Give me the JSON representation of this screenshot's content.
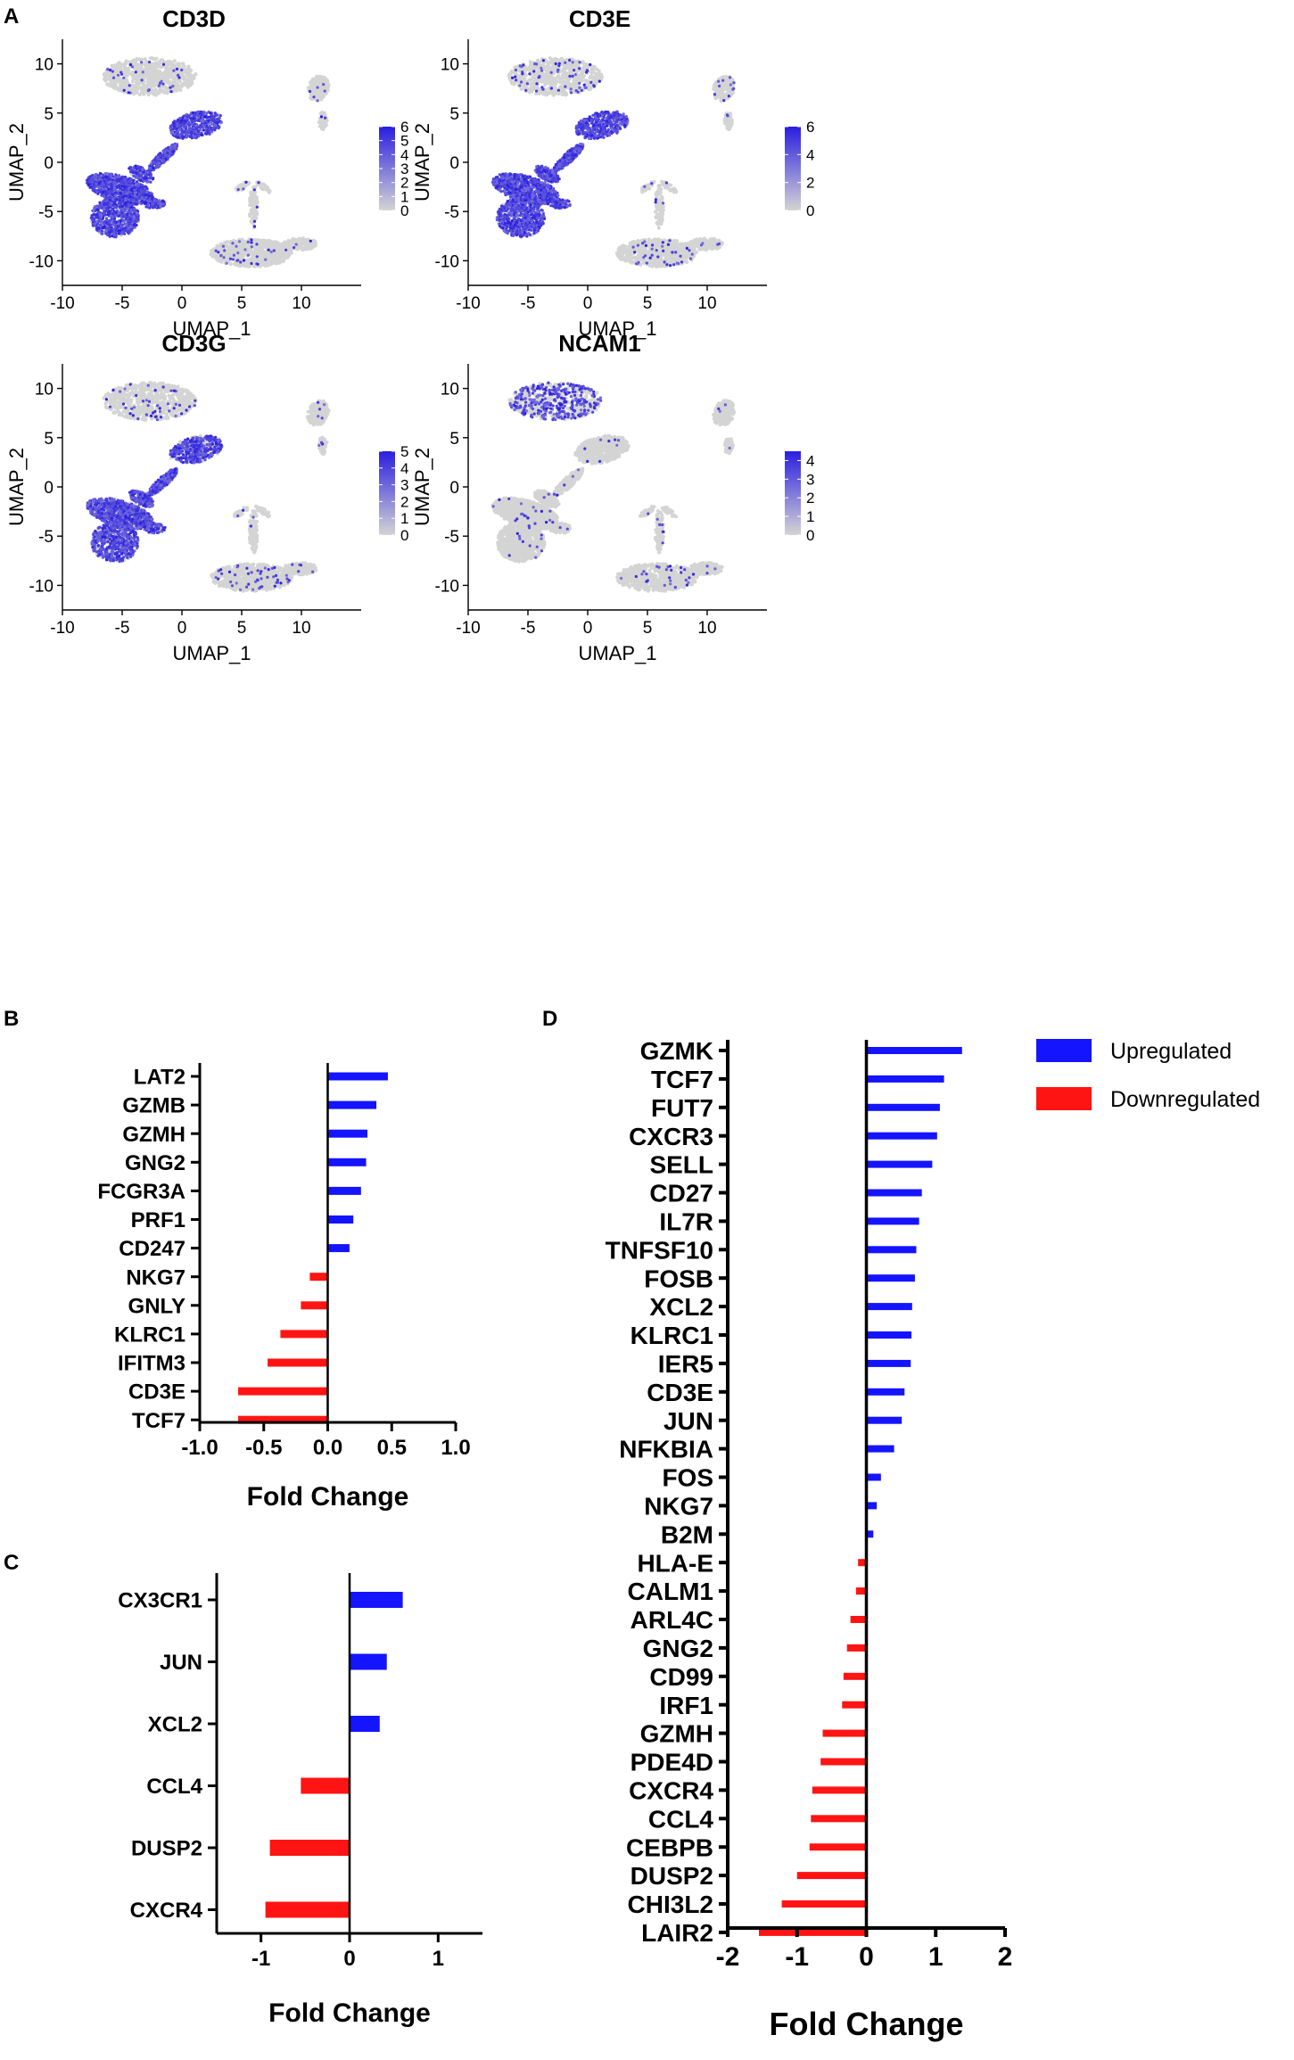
{
  "colors": {
    "high": "#2a1ee0",
    "low": "#d4d4d4",
    "up": "#1414ff",
    "down": "#ff1414"
  },
  "panel_labels": [
    "A",
    "B",
    "C",
    "D"
  ],
  "legend": {
    "up_label": "Upregulated",
    "down_label": "Downregulated"
  },
  "chart_data": [
    {
      "panel": "A",
      "type": "scatter",
      "title": "CD3D",
      "xlabel": "UMAP_1",
      "ylabel": "UMAP_2",
      "xlim": [
        -10,
        15
      ],
      "ylim": [
        -12.5,
        12.5
      ],
      "xticks": [
        -10,
        -5,
        0,
        5,
        10
      ],
      "yticks": [
        -10,
        -5,
        0,
        5,
        10
      ],
      "colorbar": {
        "min": 0,
        "max": 6,
        "ticks": [
          0,
          1,
          2,
          3,
          4,
          5,
          6
        ]
      },
      "expression": {
        "tcell": 0.9,
        "nk": 0.06,
        "myeloid": 0.06,
        "right": 0.05
      }
    },
    {
      "panel": "A",
      "type": "scatter",
      "title": "CD3E",
      "xlabel": "UMAP_1",
      "ylabel": "UMAP_2",
      "xlim": [
        -10,
        15
      ],
      "ylim": [
        -12.5,
        12.5
      ],
      "xticks": [
        -10,
        -5,
        0,
        5,
        10
      ],
      "yticks": [
        -10,
        -5,
        0,
        5,
        10
      ],
      "colorbar": {
        "min": 0,
        "max": 6,
        "ticks": [
          0,
          2,
          4,
          6
        ]
      },
      "expression": {
        "tcell": 0.92,
        "nk": 0.1,
        "myeloid": 0.06,
        "right": 0.08
      }
    },
    {
      "panel": "A",
      "type": "scatter",
      "title": "CD3G",
      "xlabel": "UMAP_1",
      "ylabel": "UMAP_2",
      "xlim": [
        -10,
        15
      ],
      "ylim": [
        -12.5,
        12.5
      ],
      "xticks": [
        -10,
        -5,
        0,
        5,
        10
      ],
      "yticks": [
        -10,
        -5,
        0,
        5,
        10
      ],
      "colorbar": {
        "min": 0,
        "max": 5,
        "ticks": [
          0,
          1,
          2,
          3,
          4,
          5
        ]
      },
      "expression": {
        "tcell": 0.78,
        "nk": 0.08,
        "myeloid": 0.06,
        "right": 0.05
      }
    },
    {
      "panel": "A",
      "type": "scatter",
      "title": "NCAM1",
      "xlabel": "UMAP_1",
      "ylabel": "UMAP_2",
      "xlim": [
        -10,
        15
      ],
      "ylim": [
        -12.5,
        12.5
      ],
      "xticks": [
        -10,
        -5,
        0,
        5,
        10
      ],
      "yticks": [
        -10,
        -5,
        0,
        5,
        10
      ],
      "colorbar": {
        "min": 0,
        "max": 4.5,
        "ticks": [
          0,
          1,
          2,
          3,
          4
        ]
      },
      "expression": {
        "tcell": 0.02,
        "nk": 0.45,
        "myeloid": 0.04,
        "right": 0.03
      }
    },
    {
      "panel": "B",
      "type": "bar",
      "orientation": "horizontal",
      "xlabel": "Fold Change",
      "xlim": [
        -1.0,
        1.0
      ],
      "xticks": [
        -1.0,
        -0.5,
        0.0,
        0.5,
        1.0
      ],
      "xtick_labels": [
        "-1.0",
        "-0.5",
        "0.0",
        "0.5",
        "1.0"
      ],
      "categories": [
        "LAT2",
        "GZMB",
        "GZMH",
        "GNG2",
        "FCGR3A",
        "PRF1",
        "CD247",
        "NKG7",
        "GNLY",
        "KLRC1",
        "IFITM3",
        "CD3E",
        "TCF7"
      ],
      "values": [
        0.47,
        0.38,
        0.31,
        0.3,
        0.26,
        0.2,
        0.17,
        -0.14,
        -0.21,
        -0.37,
        -0.47,
        -0.7,
        -0.7
      ]
    },
    {
      "panel": "C",
      "type": "bar",
      "orientation": "horizontal",
      "xlabel": "Fold Change",
      "xlim": [
        -1.5,
        1.5
      ],
      "xticks": [
        -1,
        0,
        1
      ],
      "xtick_labels": [
        "-1",
        "0",
        "1"
      ],
      "categories": [
        "CX3CR1",
        "JUN",
        "XCL2",
        "CCL4",
        "DUSP2",
        "CXCR4"
      ],
      "values": [
        0.6,
        0.42,
        0.34,
        -0.55,
        -0.9,
        -0.95
      ]
    },
    {
      "panel": "D",
      "type": "bar",
      "orientation": "horizontal",
      "xlabel": "Fold Change",
      "xlim": [
        -2,
        2
      ],
      "xticks": [
        -2,
        -1,
        0,
        1,
        2
      ],
      "xtick_labels": [
        "-2",
        "-1",
        "0",
        "1",
        "2"
      ],
      "categories": [
        "GZMK",
        "TCF7",
        "FUT7",
        "CXCR3",
        "SELL",
        "CD27",
        "IL7R",
        "TNFSF10",
        "FOSB",
        "XCL2",
        "KLRC1",
        "IER5",
        "CD3E",
        "JUN",
        "NFKBIA",
        "FOS",
        "NKG7",
        "B2M",
        "HLA-E",
        "CALM1",
        "ARL4C",
        "GNG2",
        "CD99",
        "IRF1",
        "GZMH",
        "PDE4D",
        "CXCR4",
        "CCL4",
        "CEBPB",
        "DUSP2",
        "CHI3L2",
        "LAIR2"
      ],
      "values": [
        1.38,
        1.12,
        1.06,
        1.02,
        0.95,
        0.8,
        0.76,
        0.72,
        0.7,
        0.66,
        0.65,
        0.64,
        0.55,
        0.51,
        0.4,
        0.21,
        0.15,
        0.1,
        -0.12,
        -0.15,
        -0.23,
        -0.28,
        -0.33,
        -0.35,
        -0.63,
        -0.66,
        -0.78,
        -0.8,
        -0.82,
        -1.0,
        -1.22,
        -1.55
      ]
    }
  ]
}
